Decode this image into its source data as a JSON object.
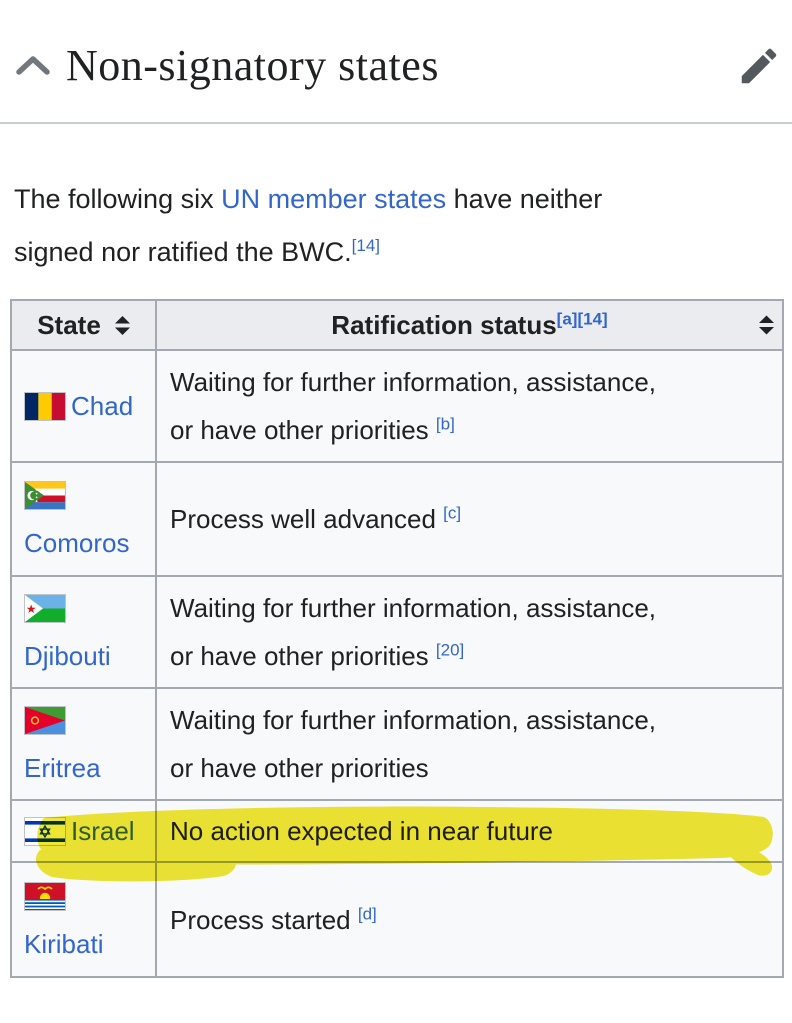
{
  "section": {
    "title": "Non-signatory states",
    "collapse_icon": "chevron-up",
    "edit_icon": "pencil"
  },
  "intro": {
    "before_link": "The following six ",
    "link_text": "UN member states",
    "after_link": " have neither\nsigned nor ratified the BWC.",
    "ref": "[14]"
  },
  "table": {
    "headers": {
      "state": "State",
      "status": "Ratification status",
      "status_refs": [
        "[a]",
        "[14]"
      ],
      "sort_icon": "sort-diamond"
    },
    "rows": [
      {
        "state": "Chad",
        "flag": "chad",
        "status": "Waiting for further information, assistance,\nor have other priorities",
        "ref": "[b]",
        "highlighted": false
      },
      {
        "state": "Comoros",
        "flag": "comoros",
        "status": "Process well advanced",
        "ref": "[c]",
        "highlighted": false
      },
      {
        "state": "Djibouti",
        "flag": "djibouti",
        "status": "Waiting for further information, assistance,\nor have other priorities",
        "ref": "[20]",
        "highlighted": false
      },
      {
        "state": "Eritrea",
        "flag": "eritrea",
        "status": "Waiting for further information, assistance,\nor have other priorities",
        "ref": "",
        "highlighted": false
      },
      {
        "state": "Israel",
        "flag": "israel",
        "status": "No action expected in near future",
        "ref": "",
        "highlighted": true
      },
      {
        "state": "Kiribati",
        "flag": "kiribati",
        "status": "Process started",
        "ref": "[d]",
        "highlighted": false
      }
    ]
  },
  "colors": {
    "link": "#3366cc",
    "text": "#202122",
    "table_border": "#a2a9b1",
    "header_bg": "#eaecf0",
    "cell_bg": "#f8f9fa",
    "highlight_yellow": "#ece000",
    "icon_gray": "#54595d",
    "chevron_gray": "#72777d"
  }
}
